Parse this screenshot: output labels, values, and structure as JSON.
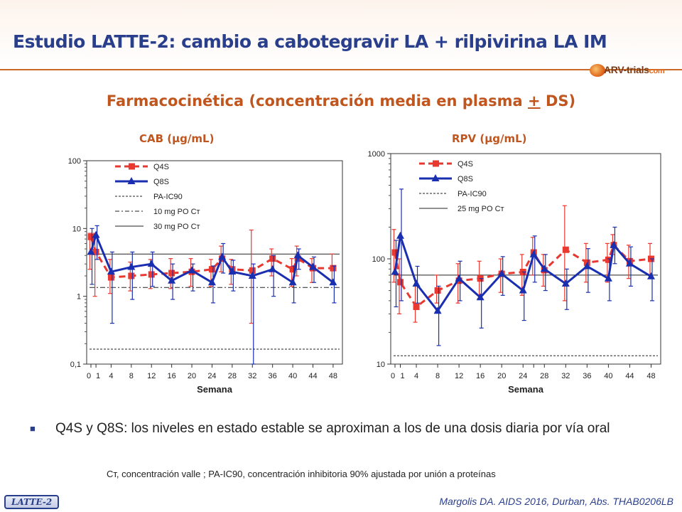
{
  "slide": {
    "title": "Estudio LATTE-2: cambio a cabotegravir LA + rilpivirina LA IM",
    "subtitle_pre": "Farmacocinética (concentración media en plasma ",
    "subtitle_pm": "+",
    "subtitle_post": " DS)",
    "logo_text": "ARV-trials",
    "logo_suffix": "com",
    "bullet": "Q4S y Q8S: los niveles en estado estable se aproximan a los de una dosis diaria por vía oral",
    "footnote": "Cт, concentración valle ; PA-IC90, concentración inhibitoria 90% ajustada por unión a proteínas",
    "reference": "Margolis DA. AIDS 2016, Durban, Abs. THAB0206LB",
    "tag": "LATTE-2"
  },
  "colors": {
    "q4s": "#e8382f",
    "q8s": "#1a2fb0",
    "title": "#2a3f8c",
    "accent": "#c0551e"
  },
  "chart_data": [
    {
      "type": "line",
      "title": "CAB (µg/mL)",
      "xlabel": "Semana",
      "y_scale": "log",
      "ylim": [
        0.1,
        100
      ],
      "yticks": [
        100,
        10,
        1,
        0.1
      ],
      "ytick_labels": [
        "100",
        "10",
        "1",
        "0,1"
      ],
      "x_ticks": [
        "0",
        "1",
        "4",
        "8",
        "12",
        "16",
        "20",
        "24",
        "28",
        "32",
        "36",
        "40",
        "44",
        "48"
      ],
      "series": [
        {
          "name": "Q4S",
          "style": "dashed",
          "x": [
            0,
            1,
            4,
            8,
            12,
            16,
            20,
            24,
            26,
            28,
            32,
            36,
            40,
            41,
            44,
            48
          ],
          "y": [
            7.5,
            4.5,
            1.9,
            2.0,
            2.1,
            2.2,
            2.3,
            2.5,
            3.6,
            2.5,
            2.4,
            3.6,
            2.5,
            3.6,
            2.6,
            2.6
          ],
          "err_hi": [
            8.5,
            8.5,
            3.5,
            3.2,
            3.5,
            3.6,
            3.6,
            3.5,
            5.5,
            3.5,
            9.5,
            5.0,
            3.6,
            5.5,
            3.6,
            4.2
          ],
          "err_lo": [
            2.5,
            1.0,
            1.1,
            1.2,
            1.3,
            1.3,
            1.4,
            1.4,
            2.3,
            1.5,
            0.4,
            2.0,
            1.4,
            2.0,
            1.6,
            1.5
          ]
        },
        {
          "name": "Q8S",
          "style": "solid",
          "x": [
            0,
            1,
            4,
            8,
            12,
            16,
            20,
            24,
            26,
            28,
            32,
            36,
            40,
            41,
            44,
            48
          ],
          "y": [
            4.5,
            8.0,
            2.3,
            2.7,
            3.0,
            1.7,
            2.4,
            1.6,
            3.8,
            2.3,
            2.0,
            2.5,
            1.6,
            4.0,
            2.7,
            1.6
          ],
          "err_hi": [
            10.0,
            11.0,
            4.5,
            4.5,
            4.5,
            3.0,
            3.0,
            2.8,
            6.0,
            3.4,
            3.0,
            4.0,
            2.8,
            5.0,
            3.8,
            2.8
          ],
          "err_lo": [
            1.5,
            3.5,
            0.4,
            0.9,
            1.4,
            0.9,
            1.2,
            0.8,
            2.2,
            1.2,
            0.1,
            1.0,
            0.8,
            2.5,
            1.6,
            0.8
          ]
        }
      ],
      "reference_lines": [
        {
          "name": "PA-IC90",
          "value": 0.166,
          "style": "dashed"
        },
        {
          "name": "10 mg PO Cт",
          "value": 1.35,
          "style": "dashdot"
        },
        {
          "name": "30 mg PO Cт",
          "value": 4.2,
          "style": "solid"
        }
      ],
      "legend_position": "top-left"
    },
    {
      "type": "line",
      "title": "RPV (µg/mL)",
      "xlabel": "Semana",
      "y_scale": "log",
      "ylim": [
        10,
        1000
      ],
      "yticks": [
        1000,
        100,
        10
      ],
      "ytick_labels": [
        "1000",
        "100",
        "10"
      ],
      "x_ticks": [
        "0",
        "1",
        "4",
        "8",
        "12",
        "16",
        "20",
        "24",
        "26",
        "28",
        "32",
        "36",
        "40",
        "44",
        "48"
      ],
      "x_tick_labels": [
        "0",
        "1",
        "4",
        "8",
        "12",
        "16",
        "20",
        "24",
        "",
        "28",
        "32",
        "36",
        "40",
        "44",
        "48"
      ],
      "series": [
        {
          "name": "Q4S",
          "style": "dashed",
          "x": [
            0,
            1,
            4,
            8,
            12,
            16,
            20,
            24,
            26,
            28,
            32,
            36,
            40,
            41,
            44,
            48
          ],
          "y": [
            115,
            60,
            35,
            50,
            62,
            65,
            72,
            75,
            115,
            78,
            122,
            92,
            98,
            135,
            95,
            100
          ],
          "err_hi": [
            190,
            100,
            55,
            70,
            90,
            95,
            100,
            110,
            160,
            110,
            320,
            140,
            140,
            170,
            135,
            140
          ],
          "err_lo": [
            60,
            30,
            25,
            38,
            38,
            42,
            48,
            45,
            70,
            55,
            40,
            60,
            60,
            110,
            65,
            70
          ]
        },
        {
          "name": "Q8S",
          "style": "solid",
          "x": [
            0,
            1,
            4,
            8,
            12,
            16,
            20,
            24,
            26,
            28,
            32,
            36,
            40,
            41,
            44,
            48
          ],
          "y": [
            75,
            165,
            58,
            32,
            65,
            43,
            72,
            50,
            110,
            80,
            58,
            85,
            65,
            135,
            90,
            68
          ],
          "err_hi": [
            150,
            460,
            85,
            55,
            95,
            65,
            105,
            75,
            165,
            110,
            80,
            125,
            100,
            200,
            130,
            100
          ],
          "err_lo": [
            35,
            40,
            38,
            15,
            40,
            22,
            45,
            26,
            60,
            50,
            33,
            48,
            40,
            90,
            55,
            40
          ]
        }
      ],
      "reference_lines": [
        {
          "name": "PA-IC90",
          "value": 12,
          "style": "dashed"
        },
        {
          "name": "25 mg PO Cт",
          "value": 70,
          "style": "solid"
        }
      ],
      "legend_position": "top-left"
    }
  ]
}
